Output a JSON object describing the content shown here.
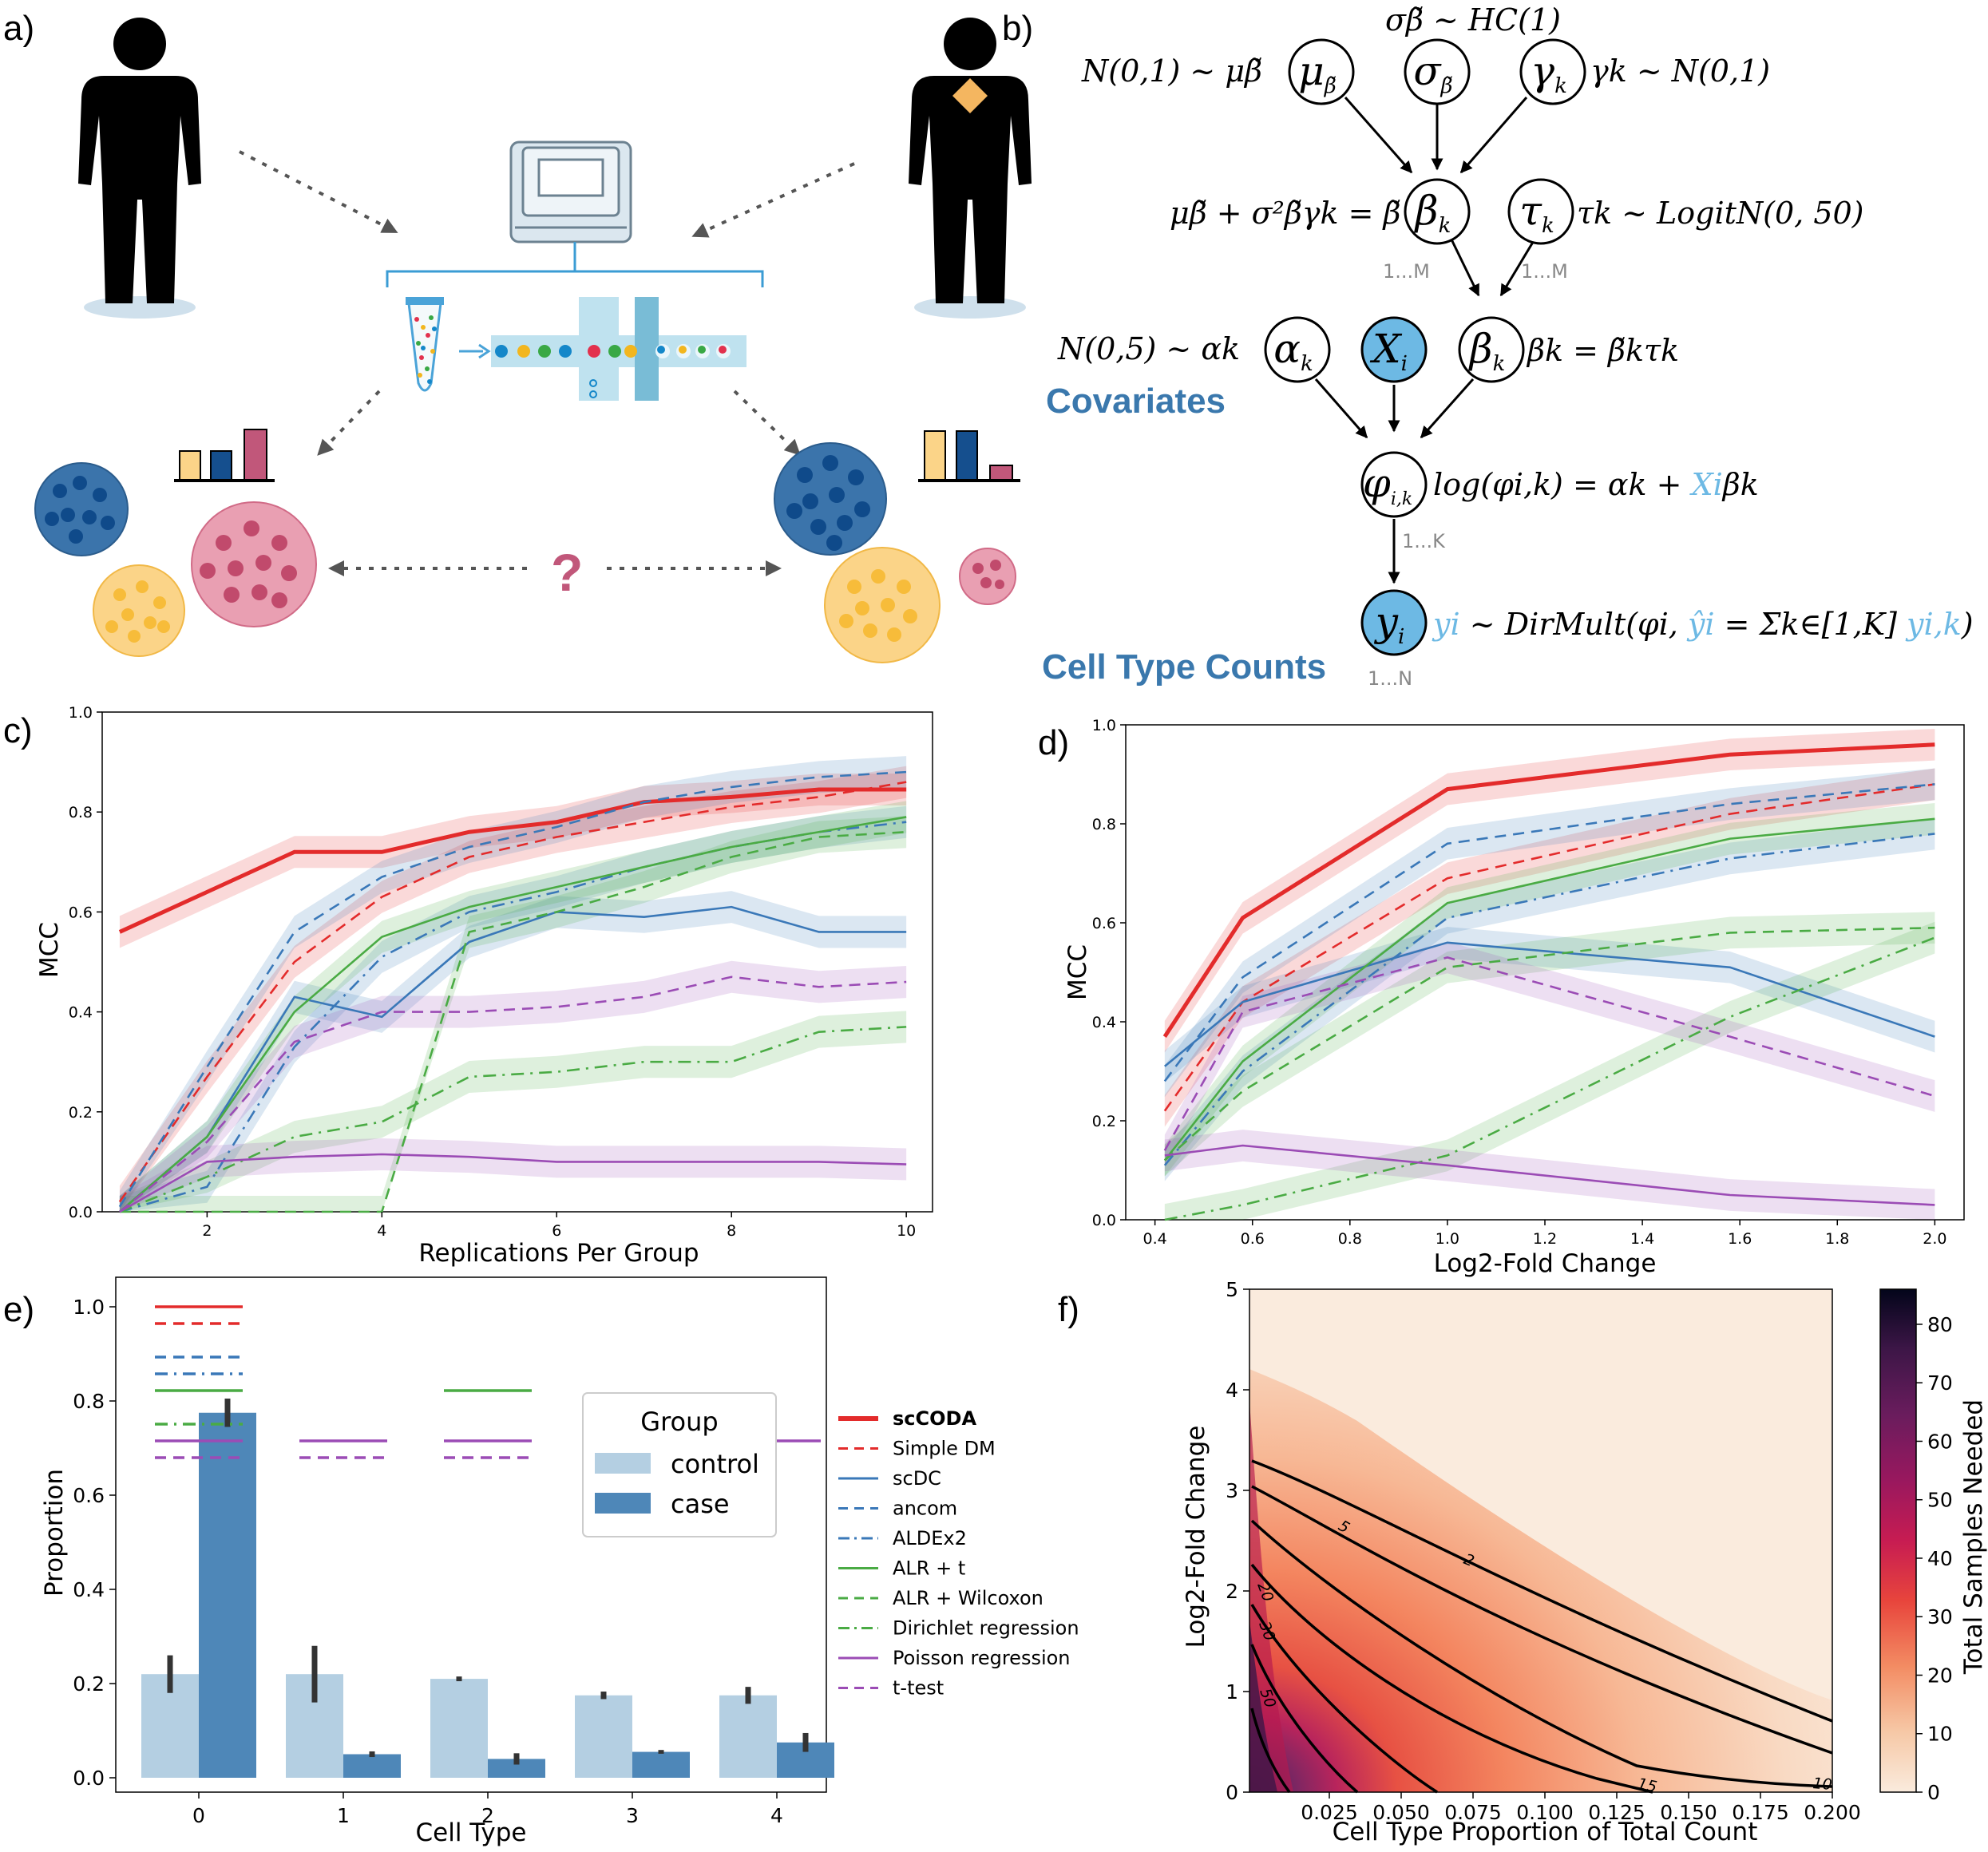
{
  "panel_labels": {
    "a": "a)",
    "b": "b)",
    "c": "c)",
    "d": "d)",
    "e": "e)",
    "f": "f)"
  },
  "colors": {
    "red": "#e32b2b",
    "blue": "#3a78b8",
    "green": "#4aab44",
    "purple": "#9b4cb5",
    "light_bar": "#b4cfe2",
    "dark_bar": "#4e87b8"
  },
  "icons": [
    "person-icon",
    "sick-person-icon",
    "sequencer-icon",
    "tube-icon",
    "microfluidics-icon",
    "cell-cluster-icon",
    "bar-chart-icon",
    "question-icon"
  ],
  "panel_a": {
    "question": "?"
  },
  "panel_b": {
    "nodes": {
      "mu": "μ",
      "sigma": "σ",
      "gamma": "γ",
      "beta_tilde": "β",
      "tau": "τ",
      "alpha": "α",
      "x": "X",
      "beta": "β",
      "phi": "φ",
      "y": "y"
    },
    "node_subs": {
      "mu": "β̃",
      "sigma": "β̃",
      "gamma": "k",
      "beta_tilde": "k",
      "tau": "k",
      "alpha": "k",
      "x": "i",
      "beta": "k",
      "phi": "i,k",
      "y": "i"
    },
    "eq_sigma": "σβ̃ ~ HC(1)",
    "eq_mu": "N(0,1) ~ μβ̃",
    "eq_gamma": "γk ~ N(0,1)",
    "eq_beta_tilde": "μβ̃ + σ²β̃γk = β̃",
    "eq_tau": "τk ~ LogitN(0, 50)",
    "eq_alpha": "N(0,5) ~ αk",
    "eq_beta": "βk = β̃kτk",
    "eq_phi_a": "log(φi,k) = αk + ",
    "eq_phi_x": "Xi",
    "eq_phi_b": "βk",
    "eq_y_a": "yi",
    "eq_y_b": " ~ DirMult(φi, ",
    "eq_y_c": "ŷi",
    "eq_y_d": " = Σk∈[1,K] ",
    "eq_y_e": "yi,k",
    "eq_y_f": ")",
    "plate_M1": "1...M",
    "plate_M2": "1...M",
    "plate_K": "1...K",
    "plate_N": "1...N",
    "covariates": "Covariates",
    "cell_type_counts": "Cell Type Counts"
  },
  "legend": {
    "items": [
      {
        "label": "scCODA",
        "color": "#e32b2b",
        "dash": "solid",
        "bold": true
      },
      {
        "label": "Simple DM",
        "color": "#e32b2b",
        "dash": "dashed"
      },
      {
        "label": "scDC",
        "color": "#3a78b8",
        "dash": "solid"
      },
      {
        "label": "ancom",
        "color": "#3a78b8",
        "dash": "dashed"
      },
      {
        "label": "ALDEx2",
        "color": "#3a78b8",
        "dash": "dashdot"
      },
      {
        "label": "ALR + t",
        "color": "#4aab44",
        "dash": "solid"
      },
      {
        "label": "ALR + Wilcoxon",
        "color": "#4aab44",
        "dash": "dashed"
      },
      {
        "label": "Dirichlet regression",
        "color": "#4aab44",
        "dash": "dashdot"
      },
      {
        "label": "Poisson regression",
        "color": "#9b4cb5",
        "dash": "solid"
      },
      {
        "label": "t-test",
        "color": "#9b4cb5",
        "dash": "dashed"
      }
    ]
  },
  "chart_data": [
    {
      "panel": "c",
      "type": "line",
      "xlabel": "Replications Per Group",
      "ylabel": "MCC",
      "xlim": [
        0.8,
        10.3
      ],
      "ylim": [
        0,
        1.0
      ],
      "xticks": [
        2,
        4,
        6,
        8,
        10
      ],
      "yticks": [
        "0.0",
        "0.2",
        "0.4",
        "0.6",
        "0.8",
        "1.0"
      ],
      "x": [
        1,
        2,
        3,
        4,
        5,
        6,
        7,
        8,
        9,
        10
      ],
      "series": [
        {
          "name": "scCODA",
          "values": [
            0.56,
            0.64,
            0.72,
            0.72,
            0.76,
            0.78,
            0.82,
            0.83,
            0.845,
            0.845
          ]
        },
        {
          "name": "Simple DM",
          "values": [
            0.02,
            0.27,
            0.5,
            0.63,
            0.71,
            0.75,
            0.78,
            0.81,
            0.83,
            0.86
          ]
        },
        {
          "name": "scDC",
          "values": [
            0.0,
            0.15,
            0.43,
            0.39,
            0.54,
            0.6,
            0.59,
            0.61,
            0.56,
            0.56
          ]
        },
        {
          "name": "ancom",
          "values": [
            0.01,
            0.29,
            0.56,
            0.67,
            0.73,
            0.77,
            0.82,
            0.85,
            0.87,
            0.88
          ]
        },
        {
          "name": "ALDEx2",
          "values": [
            0.0,
            0.05,
            0.33,
            0.51,
            0.6,
            0.64,
            0.69,
            0.73,
            0.76,
            0.78
          ]
        },
        {
          "name": "ALR + t",
          "values": [
            0.0,
            0.15,
            0.4,
            0.55,
            0.61,
            0.65,
            0.69,
            0.73,
            0.76,
            0.79
          ]
        },
        {
          "name": "ALR + Wilcoxon",
          "values": [
            0.0,
            0.0,
            0.0,
            0.0,
            0.56,
            0.6,
            0.65,
            0.71,
            0.75,
            0.76
          ]
        },
        {
          "name": "Dirichlet regression",
          "values": [
            0.0,
            0.07,
            0.15,
            0.18,
            0.27,
            0.28,
            0.3,
            0.3,
            0.36,
            0.37
          ]
        },
        {
          "name": "Poisson regression",
          "values": [
            0.0,
            0.1,
            0.11,
            0.115,
            0.11,
            0.1,
            0.1,
            0.1,
            0.1,
            0.095
          ]
        },
        {
          "name": "t-test",
          "values": [
            0.0,
            0.14,
            0.34,
            0.4,
            0.4,
            0.41,
            0.43,
            0.47,
            0.45,
            0.46
          ]
        }
      ]
    },
    {
      "panel": "d",
      "type": "line",
      "xlabel": "Log2-Fold Change",
      "ylabel": "MCC",
      "xlim": [
        0.34,
        2.06
      ],
      "ylim": [
        0,
        1.0
      ],
      "xticks": [
        "0.4",
        "0.6",
        "0.8",
        "1.0",
        "1.2",
        "1.4",
        "1.6",
        "1.8",
        "2.0"
      ],
      "yticks": [
        "0.0",
        "0.2",
        "0.4",
        "0.6",
        "0.8",
        "1.0"
      ],
      "x": [
        0.42,
        0.58,
        1.0,
        1.58,
        2.0
      ],
      "series": [
        {
          "name": "scCODA",
          "values": [
            0.37,
            0.61,
            0.87,
            0.94,
            0.96
          ]
        },
        {
          "name": "Simple DM",
          "values": [
            0.22,
            0.44,
            0.69,
            0.82,
            0.88
          ]
        },
        {
          "name": "scDC",
          "values": [
            0.31,
            0.44,
            0.56,
            0.51,
            0.37
          ]
        },
        {
          "name": "ancom",
          "values": [
            0.28,
            0.49,
            0.76,
            0.84,
            0.88
          ]
        },
        {
          "name": "ALDEx2",
          "values": [
            0.11,
            0.3,
            0.61,
            0.73,
            0.78
          ]
        },
        {
          "name": "ALR + t",
          "values": [
            0.12,
            0.32,
            0.64,
            0.77,
            0.81
          ]
        },
        {
          "name": "ALR + Wilcoxon",
          "values": [
            0.12,
            0.26,
            0.51,
            0.58,
            0.59
          ]
        },
        {
          "name": "Dirichlet regression",
          "values": [
            0.0,
            0.03,
            0.13,
            0.41,
            0.57
          ]
        },
        {
          "name": "Poisson regression",
          "values": [
            0.13,
            0.15,
            0.11,
            0.05,
            0.03
          ]
        },
        {
          "name": "t-test",
          "values": [
            0.14,
            0.42,
            0.53,
            0.37,
            0.25
          ]
        }
      ]
    },
    {
      "panel": "e",
      "type": "bar",
      "xlabel": "Cell Type",
      "ylabel": "Proportion",
      "categories": [
        "0",
        "1",
        "2",
        "3",
        "4"
      ],
      "ylim": [
        0,
        1.0
      ],
      "yticks": [
        "0.0",
        "0.2",
        "0.4",
        "0.6",
        "0.8",
        "1.0"
      ],
      "legend_title": "Group",
      "series": [
        {
          "name": "control",
          "values": [
            0.22,
            0.22,
            0.21,
            0.175,
            0.175
          ],
          "err": [
            0.04,
            0.06,
            0.005,
            0.008,
            0.018
          ]
        },
        {
          "name": "case",
          "values": [
            0.775,
            0.05,
            0.04,
            0.055,
            0.075
          ],
          "err": [
            0.03,
            0.006,
            0.012,
            0.004,
            0.02
          ]
        }
      ],
      "significance": [
        {
          "category": 0,
          "methods": [
            "scCODA",
            "Simple DM",
            "ancom",
            "ALDEx2",
            "ALR + t",
            "Dirichlet regression",
            "Poisson regression",
            "t-test"
          ]
        },
        {
          "category": 1,
          "methods": [
            "Poisson regression",
            "t-test"
          ]
        },
        {
          "category": 2,
          "methods": [
            "ALR + t",
            "Poisson regression",
            "t-test"
          ]
        },
        {
          "category": 3,
          "methods": [
            "Poisson regression"
          ]
        },
        {
          "category": 4,
          "methods": [
            "Poisson regression"
          ]
        }
      ]
    },
    {
      "panel": "f",
      "type": "heatmap",
      "xlabel": "Cell Type Proportion of Total Count",
      "ylabel": "Log2-Fold Change",
      "colorbar_label": "Total Samples Needed",
      "xlim": [
        0.0,
        0.2
      ],
      "ylim": [
        0,
        5
      ],
      "xticks": [
        "0.025",
        "0.050",
        "0.075",
        "0.100",
        "0.125",
        "0.150",
        "0.175",
        "0.200"
      ],
      "yticks": [
        "0",
        "1",
        "2",
        "3",
        "4",
        "5"
      ],
      "colorbar_ticks": [
        "0",
        "10",
        "20",
        "30",
        "40",
        "50",
        "60",
        "70",
        "80"
      ],
      "colorbar_range": [
        0,
        86
      ],
      "contours": [
        "2",
        "5",
        "10",
        "15",
        "20",
        "30",
        "50"
      ]
    }
  ]
}
